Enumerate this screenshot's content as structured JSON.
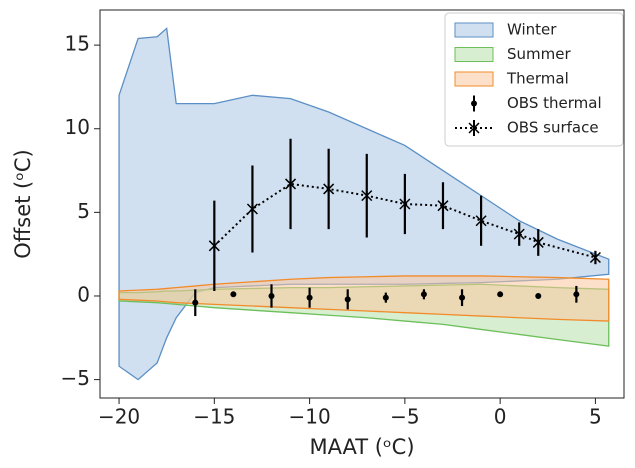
{
  "chart_data": {
    "type": "band",
    "xlabel": "MAAT (ᵒC)",
    "ylabel": "Offset (ᵒC)",
    "xlim": [
      -21,
      6.5
    ],
    "ylim": [
      -6.1,
      17.1
    ],
    "xticks": [
      {
        "value": -20,
        "label": "−20"
      },
      {
        "value": -15,
        "label": "−15"
      },
      {
        "value": -10,
        "label": "−10"
      },
      {
        "value": -5,
        "label": "−5"
      },
      0,
      5
    ],
    "yticks": [
      {
        "value": -5,
        "label": "−5"
      },
      0,
      5,
      10,
      15
    ],
    "x": [
      -20,
      -19,
      -18,
      -17.5,
      -17,
      -16,
      -15,
      -13,
      -11,
      -9,
      -7,
      -5,
      -3,
      -1,
      1,
      3,
      5.7
    ],
    "series": [
      {
        "name": "Winter",
        "color": "#a9c6e6",
        "edge": "#5b8fc5",
        "upper": [
          12,
          15.4,
          15.5,
          16,
          11.5,
          11.5,
          11.5,
          12,
          11.8,
          11,
          10,
          9,
          7.5,
          6,
          4.5,
          3.4,
          2.2
        ],
        "lower": [
          -4.2,
          -5,
          -4,
          -2.5,
          -1.3,
          0.2,
          0.5,
          0.6,
          0.7,
          0.7,
          0.7,
          0.7,
          0.75,
          0.8,
          0.9,
          1.0,
          1.3
        ]
      },
      {
        "name": "Summer",
        "color": "#b6e0aa",
        "edge": "#6cbf5a",
        "upper": [
          0.2,
          0.2,
          0.25,
          0.3,
          0.3,
          0.35,
          0.4,
          0.45,
          0.5,
          0.5,
          0.55,
          0.6,
          0.65,
          0.7,
          0.6,
          0.5,
          0.4
        ],
        "lower": [
          -0.3,
          -0.35,
          -0.4,
          -0.45,
          -0.5,
          -0.6,
          -0.7,
          -0.85,
          -1,
          -1.15,
          -1.3,
          -1.5,
          -1.7,
          -2,
          -2.3,
          -2.6,
          -3
        ]
      },
      {
        "name": "Thermal",
        "color": "#fcc69d",
        "edge": "#f28b2a",
        "upper": [
          0.3,
          0.35,
          0.4,
          0.45,
          0.5,
          0.6,
          0.7,
          0.85,
          1.0,
          1.1,
          1.15,
          1.2,
          1.2,
          1.2,
          1.15,
          1.1,
          1
        ],
        "lower": [
          -0.2,
          -0.25,
          -0.3,
          -0.35,
          -0.4,
          -0.45,
          -0.5,
          -0.6,
          -0.7,
          -0.8,
          -0.9,
          -1,
          -1.1,
          -1.2,
          -1.3,
          -1.4,
          -1.5
        ]
      }
    ],
    "observations": [
      {
        "name": "OBS thermal",
        "color": "#000000",
        "style": "dot",
        "x": [
          -16,
          -14,
          -12,
          -10,
          -8,
          -6,
          -4,
          -2,
          0,
          2,
          4
        ],
        "values": [
          -0.4,
          0.1,
          0,
          -0.1,
          -0.2,
          -0.1,
          0.1,
          -0.1,
          0.1,
          0,
          0.1
        ],
        "errors": [
          0.8,
          0.1,
          0.7,
          0.6,
          0.6,
          0.3,
          0.3,
          0.5,
          0.1,
          0.1,
          0.5
        ]
      },
      {
        "name": "OBS surface",
        "color": "#000000",
        "style": "cross",
        "x": [
          -15,
          -13,
          -11,
          -9,
          -7,
          -5,
          -3,
          -1,
          1,
          2,
          5
        ],
        "values": [
          3,
          5.2,
          6.7,
          6.4,
          6,
          5.5,
          5.4,
          4.5,
          3.7,
          3.2,
          2.3
        ],
        "errors": [
          2.7,
          2.6,
          2.7,
          2.4,
          2.5,
          1.8,
          1.4,
          1.5,
          0.7,
          0.8,
          0.4
        ]
      }
    ],
    "legend": "upper right"
  }
}
